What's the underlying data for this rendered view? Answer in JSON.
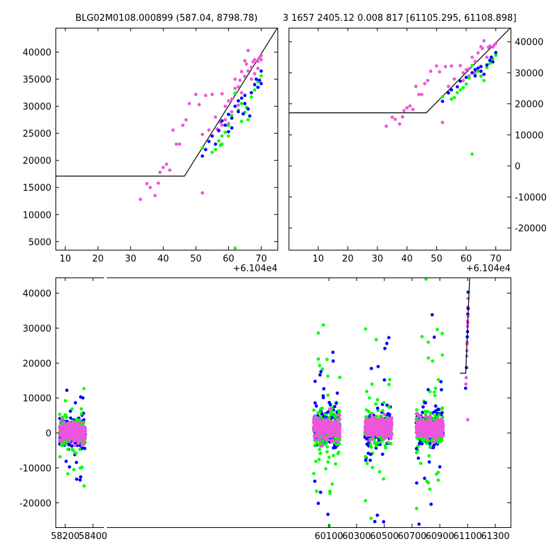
{
  "figure": {
    "title_left": "BLG02M0108.000899 (587.04, 8798.78)",
    "title_right": "3 1657 2405.12 0.008 817 [61105.295, 61108.898]"
  },
  "colors": {
    "blue": "#0000ff",
    "green": "#00ff00",
    "pink": "#ee55dd",
    "model": "#000000"
  },
  "chart_data": [
    {
      "type": "scatter",
      "name": "zoom-left",
      "x_offset_label": "+6.104e4",
      "xlim": [
        7,
        75
      ],
      "ylim": [
        3500,
        44500
      ],
      "x_ticks": [
        10,
        20,
        30,
        40,
        50,
        60,
        70
      ],
      "y_ticks": [
        5000,
        10000,
        15000,
        20000,
        25000,
        30000,
        35000,
        40000
      ],
      "model": [
        [
          7,
          17100
        ],
        [
          46.5,
          17100
        ],
        [
          75,
          44500
        ]
      ],
      "series": [
        {
          "color": "pink",
          "points": [
            [
              33,
              12800
            ],
            [
              35,
              15700
            ],
            [
              36,
              15000
            ],
            [
              37.5,
              13500
            ],
            [
              38.5,
              15800
            ],
            [
              39,
              17800
            ],
            [
              40,
              18700
            ],
            [
              41,
              19300
            ],
            [
              42,
              18200
            ],
            [
              43,
              25600
            ],
            [
              44,
              23000
            ],
            [
              45,
              23000
            ],
            [
              46,
              26500
            ],
            [
              47,
              27500
            ],
            [
              48,
              30500
            ],
            [
              50,
              32200
            ],
            [
              51,
              30300
            ],
            [
              52,
              14000
            ],
            [
              52,
              24800
            ],
            [
              53,
              32000
            ],
            [
              54,
              25600
            ],
            [
              55,
              32200
            ],
            [
              56,
              28000
            ],
            [
              57,
              25600
            ],
            [
              58,
              32300
            ],
            [
              59,
              30000
            ],
            [
              60,
              31000
            ],
            [
              61,
              31300
            ],
            [
              62,
              33300
            ],
            [
              62,
              35000
            ],
            [
              63,
              33600
            ],
            [
              64,
              36400
            ],
            [
              64,
              32500
            ],
            [
              65,
              38400
            ],
            [
              65,
              35500
            ],
            [
              66,
              40300
            ],
            [
              66,
              36500
            ],
            [
              67,
              35000
            ],
            [
              67,
              37200
            ],
            [
              68,
              38600
            ],
            [
              68,
              36000
            ],
            [
              69,
              38300
            ],
            [
              69,
              37000
            ],
            [
              70,
              39400
            ],
            [
              70,
              38600
            ],
            [
              59,
              27500
            ],
            [
              58,
              26500
            ],
            [
              61,
              29000
            ],
            [
              63,
              30200
            ],
            [
              60,
              26800
            ],
            [
              56.5,
              25800
            ],
            [
              57.5,
              27000
            ],
            [
              63.5,
              34800
            ],
            [
              65.5,
              37800
            ],
            [
              67.5,
              38200
            ],
            [
              69.5,
              39000
            ]
          ]
        },
        {
          "color": "green",
          "points": [
            [
              52,
              22300
            ],
            [
              55,
              21500
            ],
            [
              56,
              22000
            ],
            [
              57,
              23600
            ],
            [
              58,
              24500
            ],
            [
              59,
              25200
            ],
            [
              60,
              26400
            ],
            [
              61,
              28300
            ],
            [
              62,
              32400
            ],
            [
              62,
              3800
            ],
            [
              63,
              29300
            ],
            [
              64,
              30500
            ],
            [
              65,
              28900
            ],
            [
              66,
              27500
            ],
            [
              67,
              31700
            ],
            [
              68,
              33000
            ],
            [
              69,
              34500
            ],
            [
              70,
              35600
            ],
            [
              60,
              24500
            ],
            [
              58,
              23000
            ],
            [
              64,
              27200
            ],
            [
              65.5,
              29800
            ],
            [
              57.5,
              22800
            ]
          ]
        },
        {
          "color": "blue",
          "points": [
            [
              52,
              20800
            ],
            [
              53,
              22000
            ],
            [
              54,
              23500
            ],
            [
              55,
              24500
            ],
            [
              56,
              23000
            ],
            [
              57,
              25500
            ],
            [
              58,
              27300
            ],
            [
              59,
              26500
            ],
            [
              60,
              28500
            ],
            [
              61,
              26000
            ],
            [
              62,
              30000
            ],
            [
              63,
              29000
            ],
            [
              64,
              31500
            ],
            [
              65,
              30500
            ],
            [
              66,
              29500
            ],
            [
              67,
              32500
            ],
            [
              68,
              34000
            ],
            [
              69,
              33500
            ],
            [
              70,
              36500
            ],
            [
              60,
              25300
            ],
            [
              63,
              31000
            ],
            [
              65,
              32000
            ],
            [
              66.5,
              28200
            ],
            [
              68.5,
              35000
            ],
            [
              69.5,
              34800
            ],
            [
              70,
              34200
            ],
            [
              61,
              27800
            ],
            [
              64.5,
              28600
            ]
          ]
        }
      ]
    },
    {
      "type": "scatter",
      "name": "zoom-right",
      "x_offset_label": "+6.104e4",
      "xlim": [
        0,
        75
      ],
      "ylim": [
        -27000,
        44500
      ],
      "x_ticks": [
        10,
        20,
        30,
        40,
        50,
        60,
        70
      ],
      "y_ticks": [
        -20000,
        -10000,
        0,
        10000,
        20000,
        30000,
        40000
      ],
      "model": [
        [
          0,
          17100
        ],
        [
          46.5,
          17100
        ],
        [
          75,
          44500
        ]
      ],
      "series": [
        {
          "color": "pink",
          "points": [
            [
              33,
              12800
            ],
            [
              35,
              15700
            ],
            [
              36,
              15000
            ],
            [
              37.5,
              13500
            ],
            [
              38.5,
              15800
            ],
            [
              39,
              17800
            ],
            [
              40,
              18700
            ],
            [
              41,
              19300
            ],
            [
              42,
              18200
            ],
            [
              43,
              25600
            ],
            [
              44,
              23000
            ],
            [
              45,
              23000
            ],
            [
              46,
              26500
            ],
            [
              47,
              27500
            ],
            [
              48,
              30500
            ],
            [
              50,
              32200
            ],
            [
              51,
              30300
            ],
            [
              52,
              14000
            ],
            [
              53,
              32000
            ],
            [
              54,
              25600
            ],
            [
              55,
              32200
            ],
            [
              56,
              28000
            ],
            [
              58,
              32300
            ],
            [
              59,
              30000
            ],
            [
              60,
              31000
            ],
            [
              61,
              31300
            ],
            [
              62,
              35000
            ],
            [
              63,
              33600
            ],
            [
              64,
              36400
            ],
            [
              65,
              38400
            ],
            [
              66,
              40300
            ],
            [
              67,
              35000
            ],
            [
              68,
              38600
            ],
            [
              69,
              38300
            ],
            [
              70,
              39400
            ],
            [
              59,
              27500
            ],
            [
              61,
              29000
            ],
            [
              63,
              30200
            ],
            [
              65.5,
              37800
            ],
            [
              67.5,
              38200
            ],
            [
              69.5,
              39000
            ]
          ]
        },
        {
          "color": "green",
          "points": [
            [
              52,
              22300
            ],
            [
              55,
              21500
            ],
            [
              56,
              22000
            ],
            [
              57,
              23600
            ],
            [
              58,
              24500
            ],
            [
              59,
              25200
            ],
            [
              60,
              26400
            ],
            [
              61,
              28300
            ],
            [
              62,
              32400
            ],
            [
              62,
              3800
            ],
            [
              63,
              29300
            ],
            [
              64,
              30500
            ],
            [
              65,
              28900
            ],
            [
              66,
              27500
            ],
            [
              67,
              31700
            ],
            [
              68,
              33000
            ],
            [
              69,
              34500
            ],
            [
              70,
              35600
            ]
          ]
        },
        {
          "color": "blue",
          "points": [
            [
              52,
              20800
            ],
            [
              54,
              23500
            ],
            [
              55,
              24500
            ],
            [
              57,
              25500
            ],
            [
              58,
              27300
            ],
            [
              60,
              28500
            ],
            [
              62,
              30000
            ],
            [
              63,
              29000
            ],
            [
              64,
              31500
            ],
            [
              65,
              30500
            ],
            [
              66,
              29500
            ],
            [
              67,
              32500
            ],
            [
              68,
              34000
            ],
            [
              69,
              33500
            ],
            [
              70,
              36500
            ],
            [
              63,
              31000
            ],
            [
              65,
              32000
            ],
            [
              68.5,
              35000
            ]
          ]
        }
      ]
    },
    {
      "type": "scatter",
      "name": "full-lightcurve",
      "xlim": [
        58130,
        61410
      ],
      "ylim": [
        -27000,
        44500
      ],
      "x_ticks": [
        58200,
        58400,
        60100,
        60300,
        60500,
        60700,
        60900,
        61100,
        61300
      ],
      "y_ticks": [
        -20000,
        -10000,
        0,
        10000,
        20000,
        30000,
        40000
      ],
      "model": [
        [
          61044,
          17100
        ],
        [
          61086.5,
          17100
        ],
        [
          61115,
          44500
        ]
      ],
      "clusters": [
        {
          "x_range": [
            58160,
            58345
          ],
          "spread": 2800,
          "outliers": 38,
          "max_dev": 26000
        },
        {
          "x_range": [
            59990,
            60180
          ],
          "spread": 3500,
          "outliers": 60,
          "max_dev": 38000
        },
        {
          "x_range": [
            60360,
            60555
          ],
          "spread": 3000,
          "outliers": 55,
          "max_dev": 44000
        },
        {
          "x_range": [
            60730,
            60925
          ],
          "spread": 3200,
          "outliers": 60,
          "max_dev": 44000
        }
      ],
      "event_points": [
        [
          61086,
          12800
        ],
        [
          61088,
          14000
        ],
        [
          61090,
          15800
        ],
        [
          61092,
          18700
        ],
        [
          61094,
          22000
        ],
        [
          61096,
          25500
        ],
        [
          61098,
          27500
        ],
        [
          61099,
          30500
        ],
        [
          61100,
          32000
        ],
        [
          61101,
          34000
        ],
        [
          61102,
          36000
        ],
        [
          61103,
          38500
        ],
        [
          61104,
          40300
        ],
        [
          61095,
          23500
        ],
        [
          61097,
          26000
        ],
        [
          61100,
          29000
        ],
        [
          61102,
          31500
        ],
        [
          61103,
          33500
        ],
        [
          61104,
          35600
        ],
        [
          61101,
          3800
        ]
      ]
    }
  ]
}
